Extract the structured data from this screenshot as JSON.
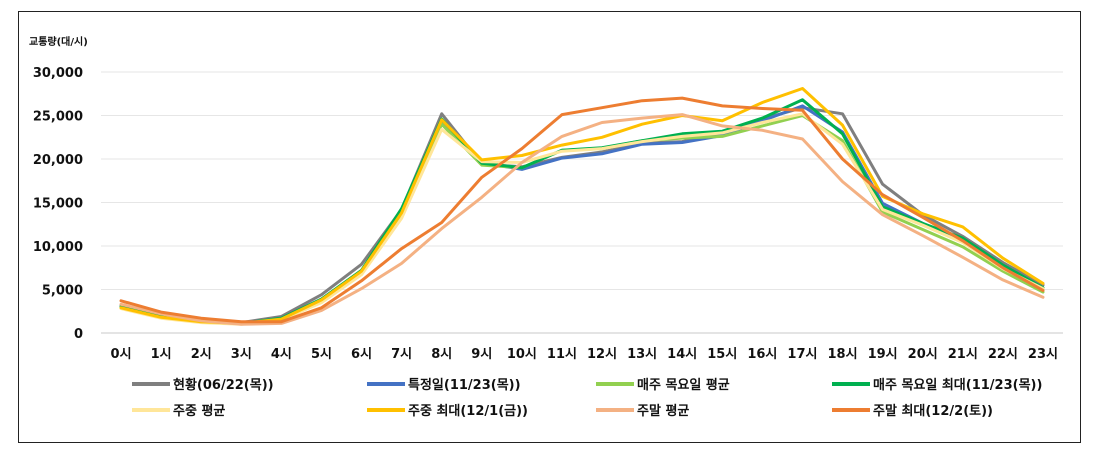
{
  "chart_data": {
    "type": "line",
    "ylabel": "교통량(대/시)",
    "ylim": [
      0,
      30000
    ],
    "yticks": [
      "0",
      "5,000",
      "10,000",
      "15,000",
      "20,000",
      "25,000",
      "30,000"
    ],
    "categories": [
      "0시",
      "1시",
      "2시",
      "3시",
      "4시",
      "5시",
      "6시",
      "7시",
      "8시",
      "9시",
      "10시",
      "11시",
      "12시",
      "13시",
      "14시",
      "15시",
      "16시",
      "17시",
      "18시",
      "19시",
      "20시",
      "21시",
      "22시",
      "23시"
    ],
    "grid": true,
    "legend_position": "bottom",
    "series": [
      {
        "name": "현황(06/22(목))",
        "color": "#7f7f7f",
        "values": [
          3200,
          2000,
          1400,
          1200,
          1900,
          4400,
          7900,
          14200,
          25200,
          19400,
          19100,
          20200,
          20800,
          21800,
          22000,
          22900,
          24600,
          25900,
          25200,
          17100,
          13600,
          11100,
          8100,
          5500
        ]
      },
      {
        "name": "특정일(11/23(목))",
        "color": "#4472c4",
        "values": [
          3000,
          1900,
          1300,
          1100,
          1700,
          3900,
          7100,
          13900,
          24300,
          19600,
          18800,
          20100,
          20600,
          21700,
          21900,
          22700,
          24400,
          26100,
          23100,
          14900,
          12600,
          10600,
          7600,
          5100
        ]
      },
      {
        "name": "매주 목요일 평균",
        "color": "#92d050",
        "values": [
          3000,
          1800,
          1300,
          1100,
          1600,
          3700,
          6900,
          13700,
          24000,
          19300,
          19000,
          21000,
          21200,
          22100,
          22400,
          22600,
          23800,
          25000,
          22100,
          13900,
          11900,
          9900,
          7100,
          4700
        ]
      },
      {
        "name": "매주 목요일 최대(11/23(목))",
        "color": "#00b050",
        "values": [
          3000,
          1900,
          1300,
          1100,
          1700,
          3900,
          7200,
          14300,
          24600,
          19500,
          19000,
          21000,
          21300,
          22100,
          22900,
          23200,
          24700,
          26800,
          22900,
          14500,
          12600,
          10900,
          7800,
          5200
        ]
      },
      {
        "name": "주중 평균",
        "color": "#ffe699",
        "values": [
          2800,
          1700,
          1200,
          1000,
          1500,
          3500,
          6700,
          13200,
          23400,
          19700,
          19600,
          20900,
          21200,
          22000,
          22600,
          23000,
          24200,
          25200,
          21700,
          14200,
          12400,
          10400,
          7400,
          5100
        ]
      },
      {
        "name": "주중 최대(12/1(금))",
        "color": "#ffc000",
        "values": [
          2900,
          1800,
          1300,
          1100,
          1600,
          3800,
          7100,
          13800,
          24500,
          19900,
          20400,
          21600,
          22500,
          24000,
          25000,
          24400,
          26500,
          28100,
          23900,
          15700,
          13700,
          12200,
          8600,
          5700
        ]
      },
      {
        "name": "주말 평균",
        "color": "#f4b183",
        "values": [
          3300,
          2200,
          1400,
          1000,
          1100,
          2600,
          5100,
          8000,
          12000,
          15600,
          19600,
          22600,
          24200,
          24700,
          25100,
          23800,
          23300,
          22300,
          17400,
          13600,
          11200,
          8700,
          6100,
          4100
        ]
      },
      {
        "name": "주말 최대(12/2(토))",
        "color": "#ed7d31",
        "values": [
          3700,
          2400,
          1700,
          1300,
          1300,
          2900,
          6000,
          9700,
          12700,
          17900,
          21200,
          25100,
          25900,
          26700,
          27000,
          26100,
          25800,
          25600,
          20000,
          15900,
          13300,
          10600,
          7500,
          4900
        ]
      }
    ]
  }
}
